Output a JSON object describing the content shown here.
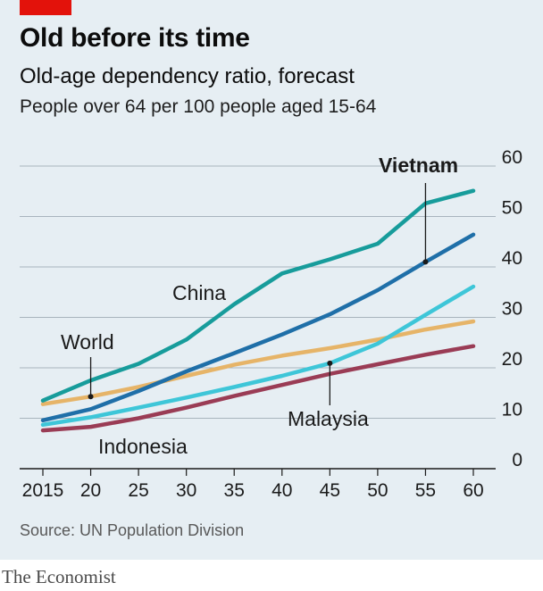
{
  "header": {
    "title": "Old before its time",
    "subtitle": "Old-age dependency ratio, forecast",
    "unit_line": "People over 64 per 100 people aged 15-64"
  },
  "footer": {
    "source": "Source: UN Population Division",
    "brand": "The Economist"
  },
  "colors": {
    "panel_background": "#e6eef3",
    "accent_red": "#e3120b",
    "china": "#179c9b",
    "vietnam": "#1f6fa8",
    "malaysia": "#3ec6d8",
    "world": "#e6b468",
    "indonesia": "#9a3c55"
  },
  "chart_data": {
    "type": "line",
    "title": "Old before its time",
    "subtitle": "Old-age dependency ratio, forecast",
    "ylabel": "People over 64 per 100 people aged 15-64",
    "xlabel": "",
    "x": [
      2015,
      2020,
      2025,
      2030,
      2035,
      2040,
      2045,
      2050,
      2055,
      2060
    ],
    "x_tick_labels": [
      "2015",
      "20",
      "25",
      "30",
      "35",
      "40",
      "45",
      "50",
      "55",
      "60"
    ],
    "y_ticks": [
      0,
      10,
      20,
      30,
      40,
      50,
      60
    ],
    "ylim": [
      0,
      60
    ],
    "grid": true,
    "y_axis_side": "right",
    "series": [
      {
        "name": "China",
        "label": "China",
        "color": "#179c9b",
        "bold": false,
        "values": [
          13.5,
          17.5,
          20.8,
          25.6,
          32.6,
          38.7,
          41.5,
          44.6,
          52.6,
          55.1
        ]
      },
      {
        "name": "Vietnam",
        "label": "Vietnam",
        "color": "#1f6fa8",
        "bold": true,
        "values": [
          9.6,
          11.8,
          15.4,
          19.3,
          22.9,
          26.6,
          30.6,
          35.4,
          41.0,
          46.4
        ]
      },
      {
        "name": "Malaysia",
        "label": "Malaysia",
        "color": "#3ec6d8",
        "bold": false,
        "values": [
          8.7,
          10.2,
          12.1,
          14.1,
          16.2,
          18.4,
          20.9,
          24.8,
          30.5,
          36.1
        ]
      },
      {
        "name": "World",
        "label": "World",
        "color": "#e6b468",
        "bold": false,
        "values": [
          12.8,
          14.3,
          16.2,
          18.4,
          20.6,
          22.4,
          23.9,
          25.6,
          27.6,
          29.2
        ]
      },
      {
        "name": "Indonesia",
        "label": "Indonesia",
        "color": "#9a3c55",
        "bold": false,
        "values": [
          7.6,
          8.3,
          10.0,
          12.1,
          14.4,
          16.6,
          18.8,
          20.7,
          22.6,
          24.3
        ]
      }
    ]
  }
}
